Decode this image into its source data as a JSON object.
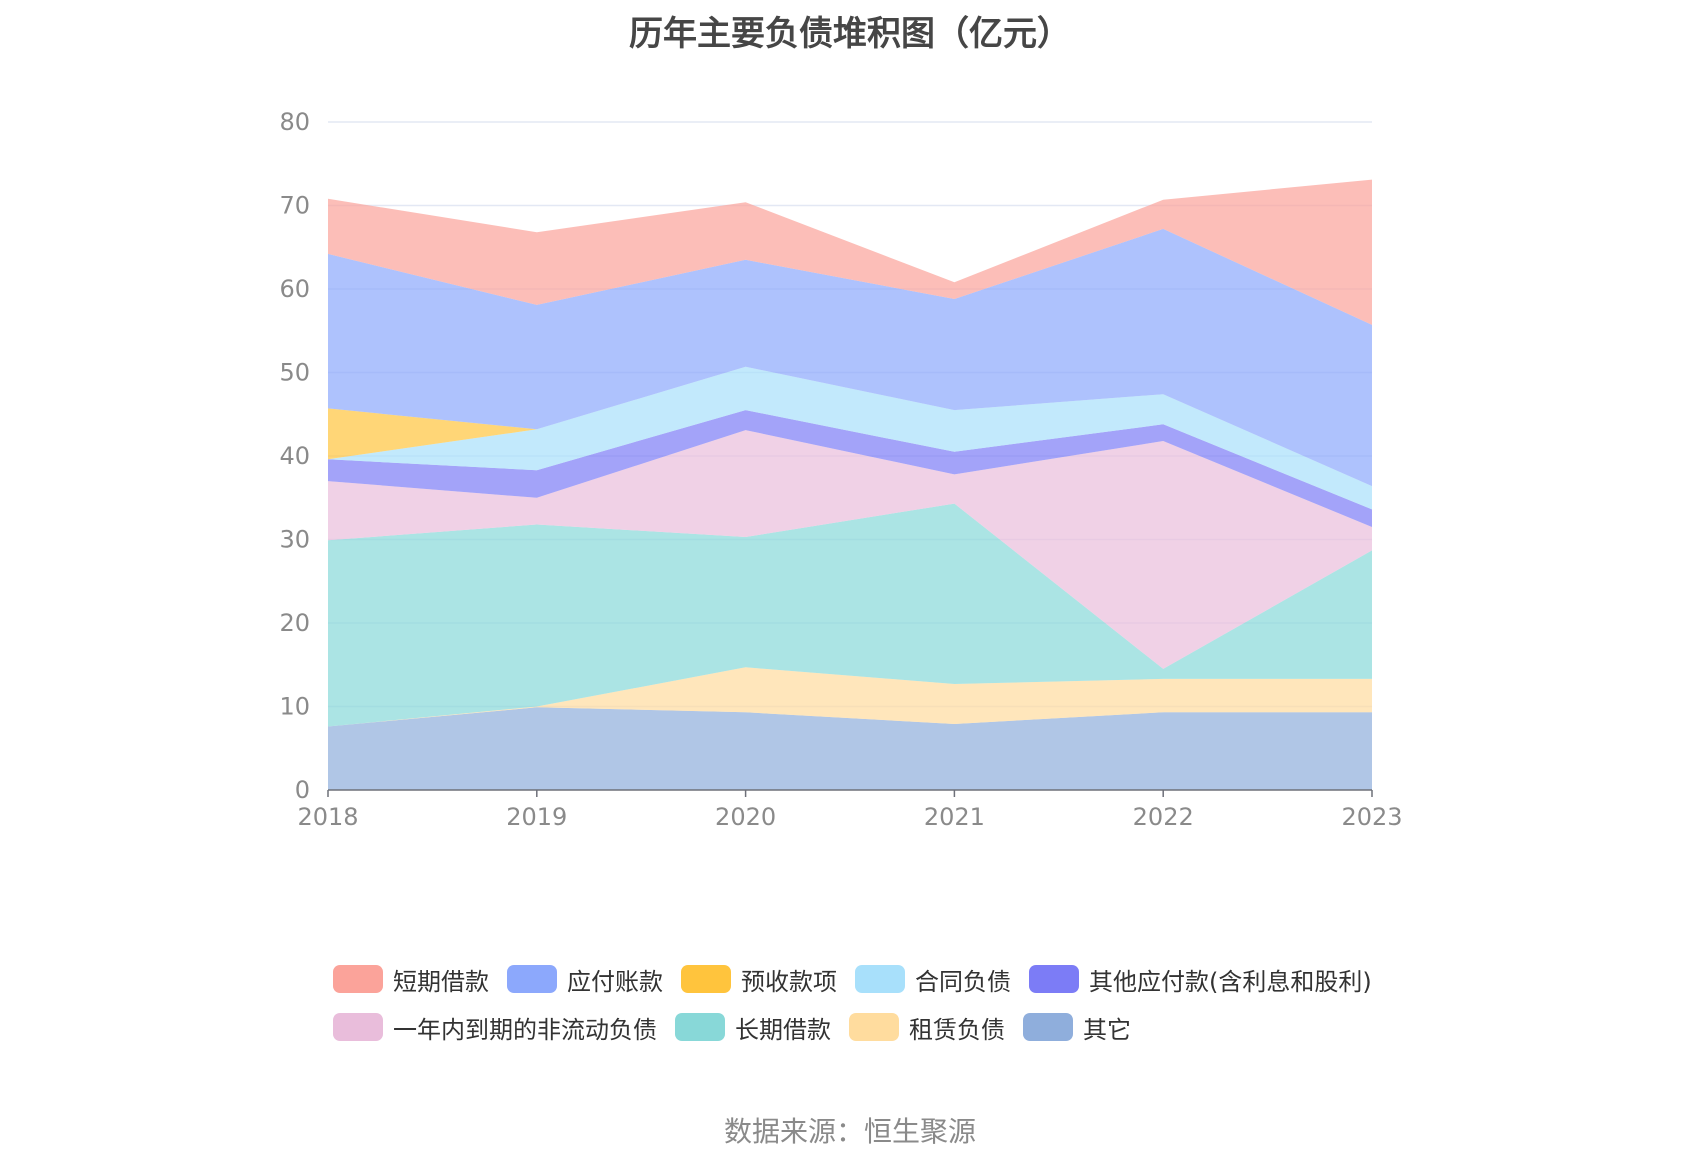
{
  "chart_data": {
    "type": "area",
    "stacked": true,
    "title": "历年主要负债堆积图（亿元）",
    "xlabel": "",
    "ylabel": "",
    "ylim": [
      0,
      80
    ],
    "yticks": [
      0,
      10,
      20,
      30,
      40,
      50,
      60,
      70,
      80
    ],
    "x": [
      "2018",
      "2019",
      "2020",
      "2021",
      "2022",
      "2023"
    ],
    "grid": true,
    "legend_position": "bottom",
    "series": [
      {
        "name": "其它",
        "color": "#8FAEDC",
        "values": [
          7.6,
          9.9,
          9.3,
          7.9,
          9.3,
          9.3
        ]
      },
      {
        "name": "租赁负债",
        "color": "#FFDC9E",
        "values": [
          0.0,
          0.1,
          5.4,
          4.8,
          4.0,
          4.0
        ]
      },
      {
        "name": "长期借款",
        "color": "#88D8D8",
        "values": [
          22.3,
          21.8,
          15.6,
          21.6,
          1.2,
          15.4
        ]
      },
      {
        "name": "一年内到期的非流动负债",
        "color": "#E9BDDB",
        "values": [
          7.1,
          3.2,
          12.8,
          3.5,
          27.3,
          2.8
        ]
      },
      {
        "name": "其他应付款(含利息和股利)",
        "color": "#7C7CF6",
        "values": [
          2.6,
          3.3,
          2.4,
          2.7,
          2.0,
          2.1
        ]
      },
      {
        "name": "合同负债",
        "color": "#A8E0FB",
        "values": [
          0.0,
          4.9,
          5.2,
          5.0,
          3.6,
          2.8
        ]
      },
      {
        "name": "预收款项",
        "color": "#FFC43D",
        "values": [
          6.1,
          0.0,
          0.0,
          0.0,
          0.0,
          0.0
        ]
      },
      {
        "name": "应付账款",
        "color": "#8CA8FC",
        "values": [
          18.5,
          14.9,
          12.8,
          13.3,
          19.8,
          19.3
        ]
      },
      {
        "name": "短期借款",
        "color": "#FBA39A",
        "values": [
          6.6,
          8.7,
          6.9,
          2.0,
          3.5,
          17.4
        ]
      }
    ]
  },
  "legend": {
    "rows": [
      [
        "短期借款",
        "应付账款",
        "预收款项",
        "合同负债",
        "其他应付款(含利息和股利)"
      ],
      [
        "一年内到期的非流动负债",
        "长期借款",
        "租赁负债",
        "其它"
      ]
    ]
  },
  "source_text": "数据来源：恒生聚源"
}
